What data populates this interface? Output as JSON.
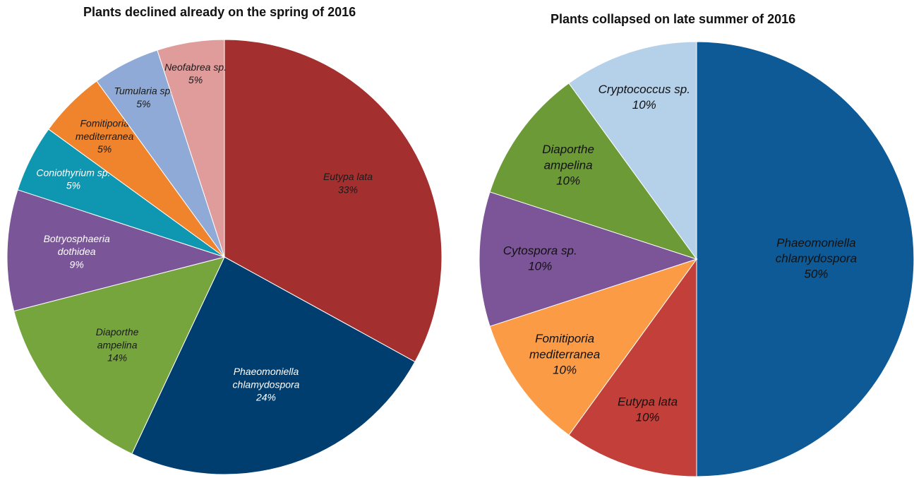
{
  "chart_data": [
    {
      "type": "pie",
      "title": "Plants declined already on the spring of 2016",
      "slices": [
        {
          "label": [
            "Eutypa lata"
          ],
          "pct": "33%",
          "value": 33,
          "color": "#a32f2f"
        },
        {
          "label": [
            "Phaeomoniella",
            "chlamydospora"
          ],
          "pct": "24%",
          "value": 24,
          "color": "#003e70"
        },
        {
          "label": [
            "Diaporthe",
            "ampelina"
          ],
          "pct": "14%",
          "value": 14,
          "color": "#76a53e"
        },
        {
          "label": [
            "Botryosphaeria",
            "dothidea"
          ],
          "pct": "9%",
          "value": 9,
          "color": "#7a5597"
        },
        {
          "label": [
            "Coniothyrium sp."
          ],
          "pct": "5%",
          "value": 5,
          "color": "#0f97b2"
        },
        {
          "label": [
            "Fomitiporia",
            "mediterranea"
          ],
          "pct": "5%",
          "value": 5,
          "color": "#f0842c"
        },
        {
          "label": [
            "Tumularia sp."
          ],
          "pct": "5%",
          "value": 5,
          "color": "#8faad6"
        },
        {
          "label": [
            "Neofabrea sp."
          ],
          "pct": "5%",
          "value": 5,
          "color": "#e09b9b"
        }
      ]
    },
    {
      "type": "pie",
      "title": "Plants collapsed on late summer of 2016",
      "slices": [
        {
          "label": [
            "Phaeomoniella",
            "chlamydospora"
          ],
          "pct": "50%",
          "value": 50,
          "color": "#0d5a96"
        },
        {
          "label": [
            "Eutypa lata"
          ],
          "pct": "10%",
          "value": 10,
          "color": "#c33f3a"
        },
        {
          "label": [
            "Fomitiporia",
            "mediterranea"
          ],
          "pct": "10%",
          "value": 10,
          "color": "#fb9b46"
        },
        {
          "label": [
            "Cytospora sp."
          ],
          "pct": "10%",
          "value": 10,
          "color": "#7b5597"
        },
        {
          "label": [
            "Diaporthe",
            "ampelina"
          ],
          "pct": "10%",
          "value": 10,
          "color": "#6b9a36"
        },
        {
          "label": [
            "Cryptococcus sp."
          ],
          "pct": "10%",
          "value": 10,
          "color": "#b5d0e9"
        }
      ]
    }
  ]
}
